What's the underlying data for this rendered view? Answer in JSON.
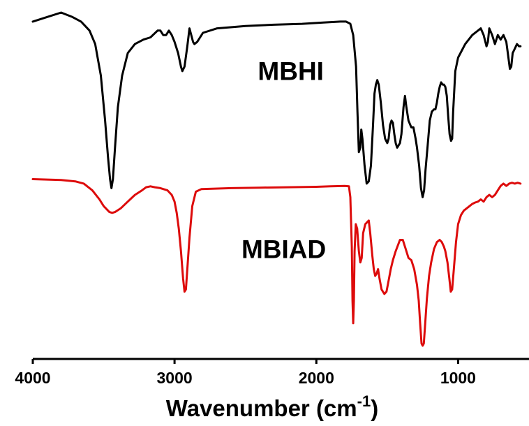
{
  "chart_data": {
    "type": "line",
    "xlabel": "Wavenumber (cm",
    "xlabel_sup": "-1",
    "xlabel_close": ")",
    "xlim": [
      4000,
      500
    ],
    "x_reversed": true,
    "x_ticks": [
      4000,
      3000,
      2000,
      1000
    ],
    "x_tick_labels": [
      "4000",
      "3000",
      "2000",
      "1000"
    ],
    "y_axis_visible": false,
    "grid": false,
    "legend": "none",
    "series": [
      {
        "name": "MBHI",
        "color": "#000000",
        "points": [
          [
            4000,
            5.2
          ],
          [
            3900,
            5.3
          ],
          [
            3800,
            5.4
          ],
          [
            3720,
            5.3
          ],
          [
            3660,
            5.2
          ],
          [
            3600,
            5.0
          ],
          [
            3560,
            4.7
          ],
          [
            3520,
            4.0
          ],
          [
            3490,
            3.0
          ],
          [
            3470,
            2.2
          ],
          [
            3455,
            1.7
          ],
          [
            3445,
            1.5
          ],
          [
            3435,
            1.7
          ],
          [
            3420,
            2.4
          ],
          [
            3400,
            3.3
          ],
          [
            3370,
            4.0
          ],
          [
            3330,
            4.5
          ],
          [
            3280,
            4.7
          ],
          [
            3220,
            4.8
          ],
          [
            3170,
            4.85
          ],
          [
            3120,
            5.0
          ],
          [
            3100,
            5.0
          ],
          [
            3080,
            4.9
          ],
          [
            3060,
            4.9
          ],
          [
            3040,
            5.0
          ],
          [
            3020,
            4.9
          ],
          [
            3000,
            4.75
          ],
          [
            2975,
            4.5
          ],
          [
            2955,
            4.2
          ],
          [
            2945,
            4.1
          ],
          [
            2930,
            4.2
          ],
          [
            2910,
            4.65
          ],
          [
            2895,
            5.05
          ],
          [
            2870,
            4.75
          ],
          [
            2860,
            4.7
          ],
          [
            2840,
            4.75
          ],
          [
            2800,
            4.95
          ],
          [
            2700,
            5.05
          ],
          [
            2500,
            5.1
          ],
          [
            2300,
            5.13
          ],
          [
            2100,
            5.15
          ],
          [
            1950,
            5.18
          ],
          [
            1830,
            5.2
          ],
          [
            1790,
            5.2
          ],
          [
            1760,
            5.15
          ],
          [
            1740,
            4.9
          ],
          [
            1720,
            4.2
          ],
          [
            1710,
            3.2
          ],
          [
            1700,
            2.3
          ],
          [
            1690,
            2.4
          ],
          [
            1683,
            2.8
          ],
          [
            1675,
            2.6
          ],
          [
            1660,
            2.0
          ],
          [
            1645,
            1.6
          ],
          [
            1630,
            1.65
          ],
          [
            1615,
            2.0
          ],
          [
            1600,
            2.9
          ],
          [
            1590,
            3.6
          ],
          [
            1580,
            3.8
          ],
          [
            1570,
            3.9
          ],
          [
            1560,
            3.8
          ],
          [
            1545,
            3.4
          ],
          [
            1530,
            2.9
          ],
          [
            1515,
            2.6
          ],
          [
            1500,
            2.5
          ],
          [
            1490,
            2.6
          ],
          [
            1480,
            2.9
          ],
          [
            1470,
            3.0
          ],
          [
            1460,
            2.95
          ],
          [
            1450,
            2.7
          ],
          [
            1440,
            2.5
          ],
          [
            1430,
            2.4
          ],
          [
            1420,
            2.45
          ],
          [
            1410,
            2.5
          ],
          [
            1400,
            2.7
          ],
          [
            1385,
            3.3
          ],
          [
            1375,
            3.55
          ],
          [
            1365,
            3.3
          ],
          [
            1350,
            3.0
          ],
          [
            1330,
            2.85
          ],
          [
            1315,
            2.85
          ],
          [
            1300,
            2.6
          ],
          [
            1290,
            2.4
          ],
          [
            1275,
            2.0
          ],
          [
            1262,
            1.5
          ],
          [
            1250,
            1.3
          ],
          [
            1240,
            1.45
          ],
          [
            1230,
            1.9
          ],
          [
            1215,
            2.45
          ],
          [
            1200,
            3.0
          ],
          [
            1185,
            3.2
          ],
          [
            1170,
            3.25
          ],
          [
            1160,
            3.25
          ],
          [
            1150,
            3.4
          ],
          [
            1140,
            3.6
          ],
          [
            1130,
            3.75
          ],
          [
            1120,
            3.85
          ],
          [
            1110,
            3.8
          ],
          [
            1100,
            3.8
          ],
          [
            1090,
            3.75
          ],
          [
            1080,
            3.55
          ],
          [
            1070,
            3.1
          ],
          [
            1060,
            2.7
          ],
          [
            1050,
            2.55
          ],
          [
            1042,
            2.6
          ],
          [
            1035,
            3.2
          ],
          [
            1020,
            4.1
          ],
          [
            1000,
            4.4
          ],
          [
            950,
            4.7
          ],
          [
            900,
            4.9
          ],
          [
            860,
            5.0
          ],
          [
            840,
            5.05
          ],
          [
            820,
            4.9
          ],
          [
            800,
            4.65
          ],
          [
            790,
            4.75
          ],
          [
            780,
            5.05
          ],
          [
            760,
            4.9
          ],
          [
            740,
            4.7
          ],
          [
            720,
            4.9
          ],
          [
            700,
            4.8
          ],
          [
            680,
            4.9
          ],
          [
            660,
            4.75
          ],
          [
            645,
            4.4
          ],
          [
            635,
            4.15
          ],
          [
            625,
            4.2
          ],
          [
            615,
            4.5
          ],
          [
            600,
            4.6
          ],
          [
            585,
            4.7
          ],
          [
            570,
            4.65
          ],
          [
            560,
            4.65
          ]
        ]
      },
      {
        "name": "MBIAD",
        "color": "#dd0b0b",
        "points": [
          [
            4000,
            1.7
          ],
          [
            3900,
            1.69
          ],
          [
            3800,
            1.68
          ],
          [
            3700,
            1.65
          ],
          [
            3640,
            1.6
          ],
          [
            3580,
            1.45
          ],
          [
            3530,
            1.25
          ],
          [
            3500,
            1.1
          ],
          [
            3460,
            0.97
          ],
          [
            3440,
            0.95
          ],
          [
            3420,
            0.97
          ],
          [
            3380,
            1.05
          ],
          [
            3330,
            1.2
          ],
          [
            3280,
            1.35
          ],
          [
            3230,
            1.45
          ],
          [
            3200,
            1.52
          ],
          [
            3170,
            1.54
          ],
          [
            3140,
            1.52
          ],
          [
            3100,
            1.5
          ],
          [
            3080,
            1.48
          ],
          [
            3050,
            1.45
          ],
          [
            3020,
            1.35
          ],
          [
            3000,
            1.2
          ],
          [
            2985,
            0.95
          ],
          [
            2970,
            0.6
          ],
          [
            2955,
            0.1
          ],
          [
            2940,
            -0.5
          ],
          [
            2930,
            -0.8
          ],
          [
            2920,
            -0.75
          ],
          [
            2910,
            -0.3
          ],
          [
            2895,
            0.4
          ],
          [
            2875,
            1.1
          ],
          [
            2850,
            1.42
          ],
          [
            2810,
            1.48
          ],
          [
            2600,
            1.5
          ],
          [
            2400,
            1.51
          ],
          [
            2200,
            1.52
          ],
          [
            2000,
            1.53
          ],
          [
            1900,
            1.54
          ],
          [
            1800,
            1.55
          ],
          [
            1770,
            1.54
          ],
          [
            1760,
            1.3
          ],
          [
            1750,
            0.2
          ],
          [
            1745,
            -1.0
          ],
          [
            1740,
            -1.5
          ],
          [
            1735,
            -1.0
          ],
          [
            1730,
            0.1
          ],
          [
            1722,
            0.7
          ],
          [
            1712,
            0.6
          ],
          [
            1700,
            0.1
          ],
          [
            1690,
            -0.15
          ],
          [
            1680,
            -0.05
          ],
          [
            1670,
            0.5
          ],
          [
            1655,
            0.7
          ],
          [
            1640,
            0.75
          ],
          [
            1630,
            0.78
          ],
          [
            1620,
            0.5
          ],
          [
            1605,
            0.0
          ],
          [
            1595,
            -0.3
          ],
          [
            1585,
            -0.45
          ],
          [
            1575,
            -0.4
          ],
          [
            1565,
            -0.3
          ],
          [
            1555,
            -0.5
          ],
          [
            1540,
            -0.75
          ],
          [
            1520,
            -0.85
          ],
          [
            1505,
            -0.8
          ],
          [
            1490,
            -0.55
          ],
          [
            1475,
            -0.3
          ],
          [
            1460,
            -0.1
          ],
          [
            1440,
            0.1
          ],
          [
            1410,
            0.35
          ],
          [
            1390,
            0.35
          ],
          [
            1370,
            0.15
          ],
          [
            1350,
            -0.05
          ],
          [
            1330,
            -0.1
          ],
          [
            1310,
            -0.3
          ],
          [
            1290,
            -0.65
          ],
          [
            1278,
            -1.0
          ],
          [
            1268,
            -1.5
          ],
          [
            1258,
            -1.95
          ],
          [
            1250,
            -2.0
          ],
          [
            1242,
            -1.95
          ],
          [
            1232,
            -1.5
          ],
          [
            1220,
            -0.95
          ],
          [
            1205,
            -0.45
          ],
          [
            1190,
            -0.15
          ],
          [
            1170,
            0.15
          ],
          [
            1150,
            0.3
          ],
          [
            1130,
            0.35
          ],
          [
            1115,
            0.3
          ],
          [
            1100,
            0.2
          ],
          [
            1090,
            0.1
          ],
          [
            1075,
            -0.15
          ],
          [
            1062,
            -0.5
          ],
          [
            1052,
            -0.8
          ],
          [
            1042,
            -0.75
          ],
          [
            1030,
            -0.3
          ],
          [
            1015,
            0.3
          ],
          [
            1000,
            0.7
          ],
          [
            980,
            0.9
          ],
          [
            960,
            1.0
          ],
          [
            940,
            1.05
          ],
          [
            920,
            1.1
          ],
          [
            900,
            1.15
          ],
          [
            880,
            1.18
          ],
          [
            860,
            1.2
          ],
          [
            840,
            1.25
          ],
          [
            820,
            1.2
          ],
          [
            800,
            1.3
          ],
          [
            780,
            1.35
          ],
          [
            760,
            1.3
          ],
          [
            740,
            1.35
          ],
          [
            720,
            1.45
          ],
          [
            700,
            1.55
          ],
          [
            680,
            1.6
          ],
          [
            660,
            1.55
          ],
          [
            640,
            1.6
          ],
          [
            620,
            1.62
          ],
          [
            600,
            1.6
          ],
          [
            580,
            1.62
          ],
          [
            560,
            1.6
          ]
        ]
      }
    ],
    "annotations": [
      {
        "text": "MBHI",
        "x": 2180,
        "y": 3.9
      },
      {
        "text": "MBIAD",
        "x": 2230,
        "y": -0.05
      }
    ]
  }
}
